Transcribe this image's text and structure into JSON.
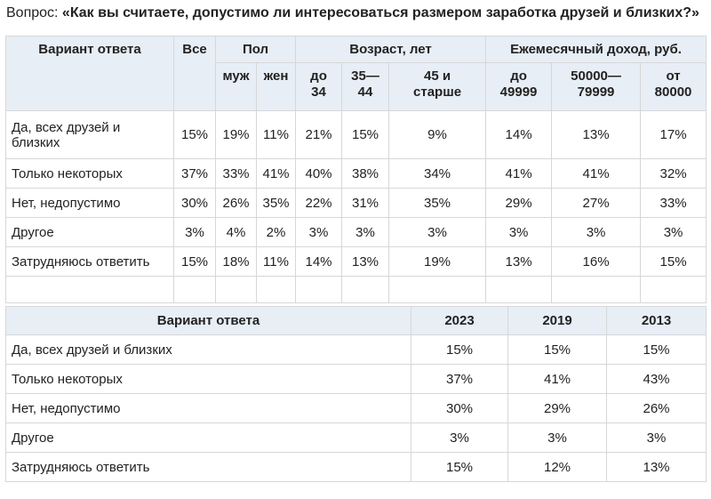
{
  "question": {
    "prefix": "Вопрос: ",
    "text": "«Как вы считаете, допустимо ли интересоваться размером заработка друзей и близких?»"
  },
  "table1": {
    "header": {
      "variant": "Вариант ответа",
      "all": "Все",
      "gender": "Пол",
      "age": "Возраст, лет",
      "income": "Ежемесячный доход, руб."
    },
    "subheaders": [
      "муж",
      "жен",
      "до\n34",
      "35—\n44",
      "45 и\nстарше",
      "до\n49999",
      "50000—\n79999",
      "от\n80000"
    ],
    "rows": [
      {
        "label": "Да, всех друзей и\nблизких",
        "values": [
          "15%",
          "19%",
          "11%",
          "21%",
          "15%",
          "9%",
          "14%",
          "13%",
          "17%"
        ]
      },
      {
        "label": "Только некоторых",
        "values": [
          "37%",
          "33%",
          "41%",
          "40%",
          "38%",
          "34%",
          "41%",
          "41%",
          "32%"
        ]
      },
      {
        "label": "Нет, недопустимо",
        "values": [
          "30%",
          "26%",
          "35%",
          "22%",
          "31%",
          "35%",
          "29%",
          "27%",
          "33%"
        ]
      },
      {
        "label": "Другое",
        "values": [
          "3%",
          "4%",
          "2%",
          "3%",
          "3%",
          "3%",
          "3%",
          "3%",
          "3%"
        ]
      },
      {
        "label": "Затрудняюсь ответить",
        "values": [
          "15%",
          "18%",
          "11%",
          "14%",
          "13%",
          "19%",
          "13%",
          "16%",
          "15%"
        ]
      }
    ]
  },
  "table2": {
    "headers": [
      "Вариант ответа",
      "2023",
      "2019",
      "2013"
    ],
    "rows": [
      {
        "label": "Да, всех друзей и близких",
        "values": [
          "15%",
          "15%",
          "15%"
        ]
      },
      {
        "label": "Только некоторых",
        "values": [
          "37%",
          "41%",
          "43%"
        ]
      },
      {
        "label": "Нет, недопустимо",
        "values": [
          "30%",
          "29%",
          "26%"
        ]
      },
      {
        "label": "Другое",
        "values": [
          "3%",
          "3%",
          "3%"
        ]
      },
      {
        "label": "Затрудняюсь ответить",
        "values": [
          "15%",
          "12%",
          "13%"
        ]
      }
    ]
  }
}
